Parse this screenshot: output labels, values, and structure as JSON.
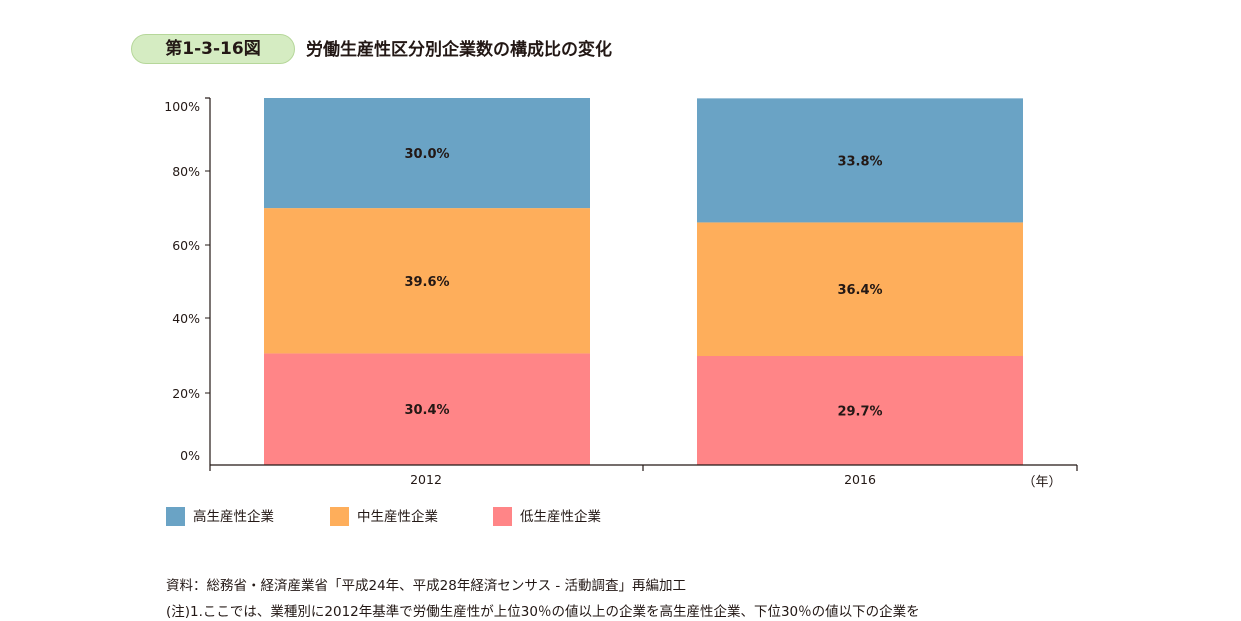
{
  "figure_number": "第1-3-16図",
  "title": "労働生産性区分別企業数の構成比の変化",
  "chart_data": {
    "type": "bar",
    "stacked": true,
    "categories": [
      "2012",
      "2016"
    ],
    "x_unit_label": "（年）",
    "ylim": [
      0,
      100
    ],
    "y_ticks": [
      "0%",
      "20%",
      "40%",
      "60%",
      "80%",
      "100%"
    ],
    "series": [
      {
        "name": "低生産性企業",
        "values": [
          30.4,
          29.7
        ],
        "labels": [
          "30.4%",
          "29.7%"
        ],
        "color": "#ff8587"
      },
      {
        "name": "中生産性企業",
        "values": [
          39.6,
          36.4
        ],
        "labels": [
          "39.6%",
          "36.4%"
        ],
        "color": "#feae5b"
      },
      {
        "name": "高生産性企業",
        "values": [
          30.0,
          33.8
        ],
        "labels": [
          "30.0%",
          "33.8%"
        ],
        "color": "#6aa3c5"
      }
    ],
    "legend_order": [
      "高生産性企業",
      "中生産性企業",
      "低生産性企業"
    ],
    "legend_position": "bottom-left",
    "grid": false
  },
  "notes": {
    "source": "資料：総務省・経済産業省「平成24年、平成28年経済センサス - 活動調査」再編加工",
    "note1": "(注)1.ここでは、業種別に2012年基準で労働生産性が上位30％の値以上の企業を高生産性企業、下位30％の値以下の企業を"
  }
}
